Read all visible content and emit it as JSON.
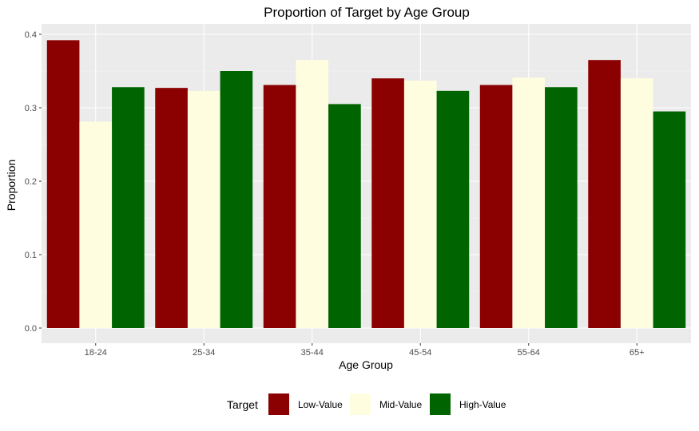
{
  "chart_data": {
    "type": "bar",
    "title": "Proportion of Target by Age Group",
    "xlabel": "Age Group",
    "ylabel": "Proportion",
    "categories": [
      "18-24",
      "25-34",
      "35-44",
      "45-54",
      "55-64",
      "65+"
    ],
    "ylim": [
      0,
      0.4
    ],
    "yticks": [
      0.0,
      0.1,
      0.2,
      0.3,
      0.4
    ],
    "ytick_labels": [
      "0.0",
      "0.1",
      "0.2",
      "0.3",
      "0.4"
    ],
    "grid": true,
    "legend": {
      "title": "Target",
      "position": "bottom"
    },
    "series": [
      {
        "name": "Low-Value",
        "color": "#8b0000",
        "values": [
          0.392,
          0.327,
          0.331,
          0.34,
          0.331,
          0.365
        ]
      },
      {
        "name": "Mid-Value",
        "color": "#fffde0",
        "values": [
          0.281,
          0.323,
          0.365,
          0.337,
          0.341,
          0.34
        ]
      },
      {
        "name": "High-Value",
        "color": "#006400",
        "values": [
          0.328,
          0.35,
          0.305,
          0.323,
          0.328,
          0.295
        ]
      }
    ]
  }
}
